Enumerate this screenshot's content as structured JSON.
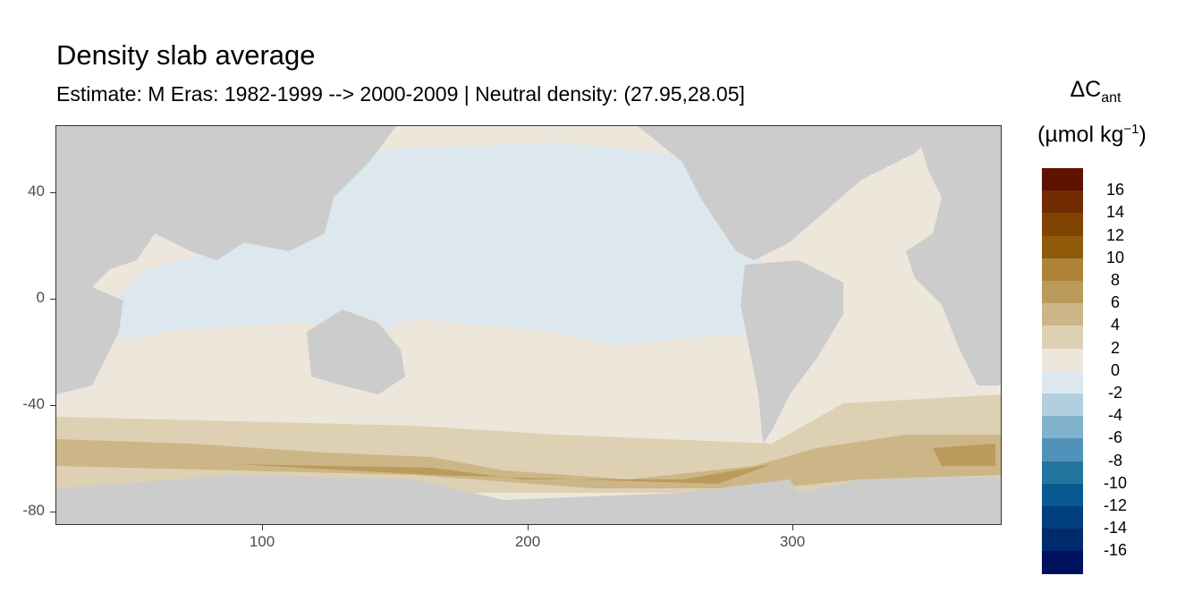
{
  "title": "Density slab average",
  "subtitle": "Estimate: M Eras: 1982-1999 --> 2000-2009 | Neutral density: (27.95,28.05]",
  "chart_data": {
    "type": "heatmap",
    "title": "Density slab average",
    "subtitle": "Estimate: M Eras: 1982-1999 --> 2000-2009 | Neutral density: (27.95,28.05]",
    "xlabel": "",
    "ylabel": "",
    "x_ticks": [
      "100",
      "200",
      "300"
    ],
    "y_ticks": [
      "40",
      "0",
      "-40",
      "-80"
    ],
    "xlim": [
      22,
      379
    ],
    "ylim": [
      -85,
      65
    ],
    "land_color": "#cccccc",
    "legend": {
      "title_main": "ΔC",
      "title_sub": "ant",
      "unit": "(µmol kg",
      "unit_sup": "−1",
      "unit_close": ")",
      "placement": "right",
      "labels": [
        "16",
        "14",
        "12",
        "10",
        "8",
        "6",
        "4",
        "2",
        "0",
        "-2",
        "-4",
        "-6",
        "-8",
        "-10",
        "-12",
        "-14",
        "-16"
      ],
      "colors": [
        "#5f1200",
        "#722b00",
        "#814400",
        "#8f5b0a",
        "#ad8438",
        "#bb9a5c",
        "#ccb687",
        "#ddd0b3",
        "#ede6da",
        "#dde8ee",
        "#b2cfe0",
        "#81b2cb",
        "#5193b8",
        "#2474a0",
        "#075a8f",
        "#003e7c",
        "#002a6c",
        "#00125f"
      ]
    }
  }
}
